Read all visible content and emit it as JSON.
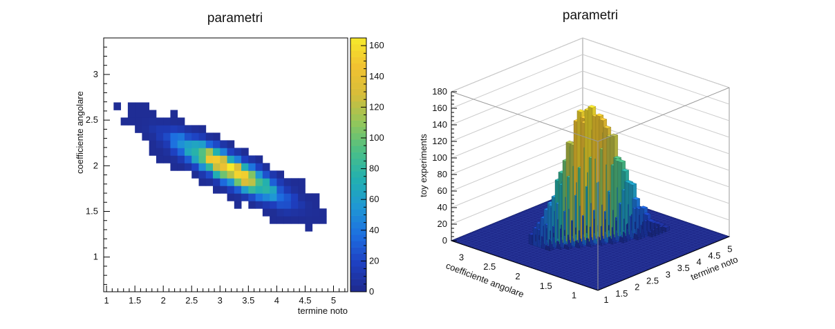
{
  "chart_data": [
    {
      "type": "heatmap",
      "title": "parametri",
      "xlabel": "termine noto",
      "ylabel": "coefficiente angolare",
      "xlim": [
        0.95,
        5.25
      ],
      "ylim": [
        0.62,
        3.4
      ],
      "xticks": [
        "1",
        "1.5",
        "2",
        "2.5",
        "3",
        "3.5",
        "4",
        "4.5",
        "5"
      ],
      "yticks": [
        "1",
        "1.5",
        "2",
        "2.5",
        "3"
      ],
      "bin_width": [
        0.125,
        0.083
      ],
      "density": {
        "center": [
          3.15,
          1.97
        ],
        "sigma": [
          0.55,
          0.2
        ],
        "correlation": -0.87,
        "peak_count": 160
      },
      "colorbar": {
        "min": 0,
        "max": 165,
        "ticks": [
          "0",
          "20",
          "40",
          "60",
          "80",
          "100",
          "120",
          "140",
          "160"
        ],
        "palette": [
          "#1f2a8c",
          "#1e3fc0",
          "#1d6ee0",
          "#1f97d4",
          "#22b0b0",
          "#4cbf86",
          "#93c65a",
          "#d7bd3a",
          "#f1c231",
          "#f6e92b"
        ]
      }
    },
    {
      "type": "lego3d",
      "title": "parametri",
      "xlabel": "termine noto",
      "ylabel": "coefficiente angolare",
      "zlabel": "toy experiments",
      "zlim": [
        0,
        180
      ],
      "xticks": [
        "1",
        "1.5",
        "2",
        "2.5",
        "3",
        "3.5",
        "4",
        "4.5",
        "5"
      ],
      "yticks": [
        "1",
        "1.5",
        "2",
        "2.5",
        "3"
      ],
      "zticks": [
        "0",
        "20",
        "40",
        "60",
        "80",
        "100",
        "120",
        "140",
        "160",
        "180"
      ],
      "peak_count": 168
    }
  ]
}
